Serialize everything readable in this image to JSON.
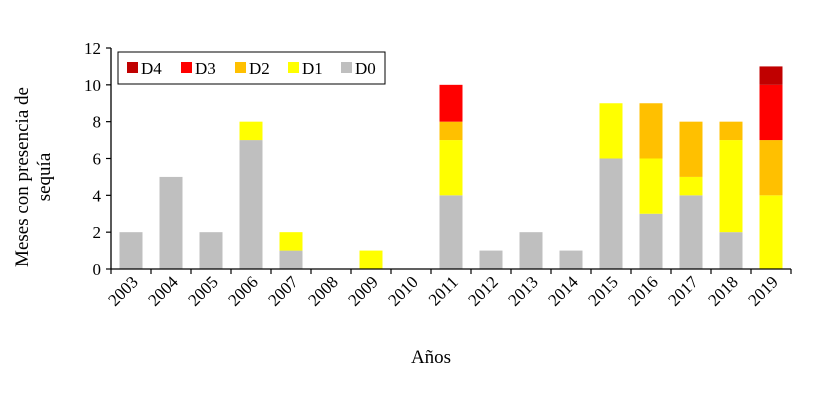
{
  "chart_data": {
    "type": "bar",
    "stacked": true,
    "xlabel": "Años",
    "ylabel": [
      "Meses con presencia de",
      "sequía"
    ],
    "ylim": [
      0,
      12
    ],
    "yticks": [
      0,
      2,
      4,
      6,
      8,
      10,
      12
    ],
    "grid": false,
    "legend_position": "top-left",
    "categories": [
      "2003",
      "2004",
      "2005",
      "2006",
      "2007",
      "2008",
      "2009",
      "2010",
      "2011",
      "2012",
      "2013",
      "2014",
      "2015",
      "2016",
      "2017",
      "2018",
      "2019"
    ],
    "series": [
      {
        "name": "D0",
        "color": "#bfbfbf",
        "values": [
          2,
          5,
          2,
          7,
          1,
          0,
          0,
          0,
          4,
          1,
          2,
          1,
          6,
          3,
          4,
          2,
          0
        ]
      },
      {
        "name": "D1",
        "color": "#ffff00",
        "values": [
          0,
          0,
          0,
          1,
          1,
          0,
          1,
          0,
          3,
          0,
          0,
          0,
          3,
          3,
          1,
          5,
          4
        ]
      },
      {
        "name": "D2",
        "color": "#ffc000",
        "values": [
          0,
          0,
          0,
          0,
          0,
          0,
          0,
          0,
          1,
          0,
          0,
          0,
          0,
          3,
          3,
          1,
          3
        ]
      },
      {
        "name": "D3",
        "color": "#ff0000",
        "values": [
          0,
          0,
          0,
          0,
          0,
          0,
          0,
          0,
          2,
          0,
          0,
          0,
          0,
          0,
          0,
          0,
          3
        ]
      },
      {
        "name": "D4",
        "color": "#c00000",
        "values": [
          0,
          0,
          0,
          0,
          0,
          0,
          0,
          0,
          0,
          0,
          0,
          0,
          0,
          0,
          0,
          0,
          1
        ]
      }
    ],
    "legend_order": [
      "D4",
      "D3",
      "D2",
      "D1",
      "D0"
    ]
  }
}
